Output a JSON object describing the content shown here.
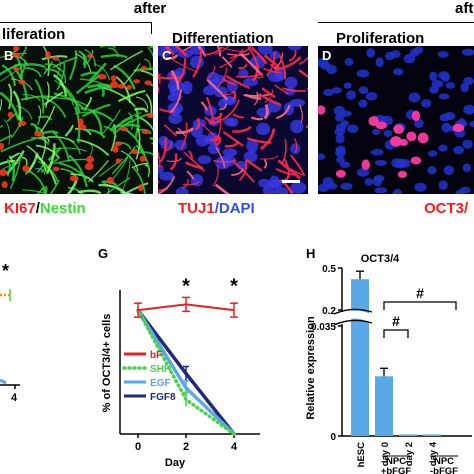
{
  "headings": {
    "left": "after",
    "right": "aft"
  },
  "panels": {
    "B": {
      "letter": "B",
      "title": "liferation"
    },
    "C": {
      "letter": "C",
      "title": "Differentiation"
    },
    "D": {
      "letter": "D",
      "title": "Proliferation"
    }
  },
  "captions": {
    "B": {
      "part1": "KI67",
      "slash": "/",
      "part2": "Nestin"
    },
    "C": {
      "part1": "TUJ1",
      "slash": "/",
      "part2": "DAPI"
    },
    "D": {
      "part1": "OCT3/"
    }
  },
  "colors": {
    "red": "#ff1a1a",
    "green": "#33dd33",
    "blue": "#2a4fff",
    "bar": "#5aa9e6"
  },
  "fragment": {
    "tick": "4",
    "star": "*"
  },
  "chart_data": [
    {
      "panel": "G",
      "type": "line",
      "xlabel": "Day",
      "ylabel": "% of OCT3/4+ cells",
      "x": [
        0,
        2,
        4
      ],
      "series": [
        {
          "name": "bF",
          "color": "#e52222",
          "dash": "solid",
          "values": [
            4.3,
            4.5,
            4.3
          ]
        },
        {
          "name": "SHH",
          "color": "#4cd14c",
          "dash": "dotted",
          "values": [
            4.3,
            1.2,
            0
          ]
        },
        {
          "name": "EGF",
          "color": "#5aa9e6",
          "dash": "solid",
          "values": [
            4.3,
            1.6,
            0
          ]
        },
        {
          "name": "FGF8",
          "color": "#1f2a7a",
          "dash": "solid",
          "values": [
            4.3,
            2.1,
            0
          ]
        }
      ],
      "annotations": [
        {
          "x": 2,
          "text": "*"
        },
        {
          "x": 4,
          "text": "*"
        }
      ]
    },
    {
      "panel": "H",
      "type": "bar",
      "title": "OCT3/4",
      "ylabel": "Relative expression",
      "ticks": [
        "0.5",
        "0.2",
        "0.035",
        "0"
      ],
      "categories": [
        "hESC",
        "day 0",
        "day 2",
        "day 4"
      ],
      "values": [
        0.42,
        0.019,
        0.0005,
        0.0005
      ],
      "groups": [
        {
          "label1": "NPC",
          "label2": "+bFGF"
        },
        {
          "label1": "NPC",
          "label2": "-bFGF"
        }
      ],
      "annotations": [
        "#",
        "#"
      ]
    }
  ]
}
